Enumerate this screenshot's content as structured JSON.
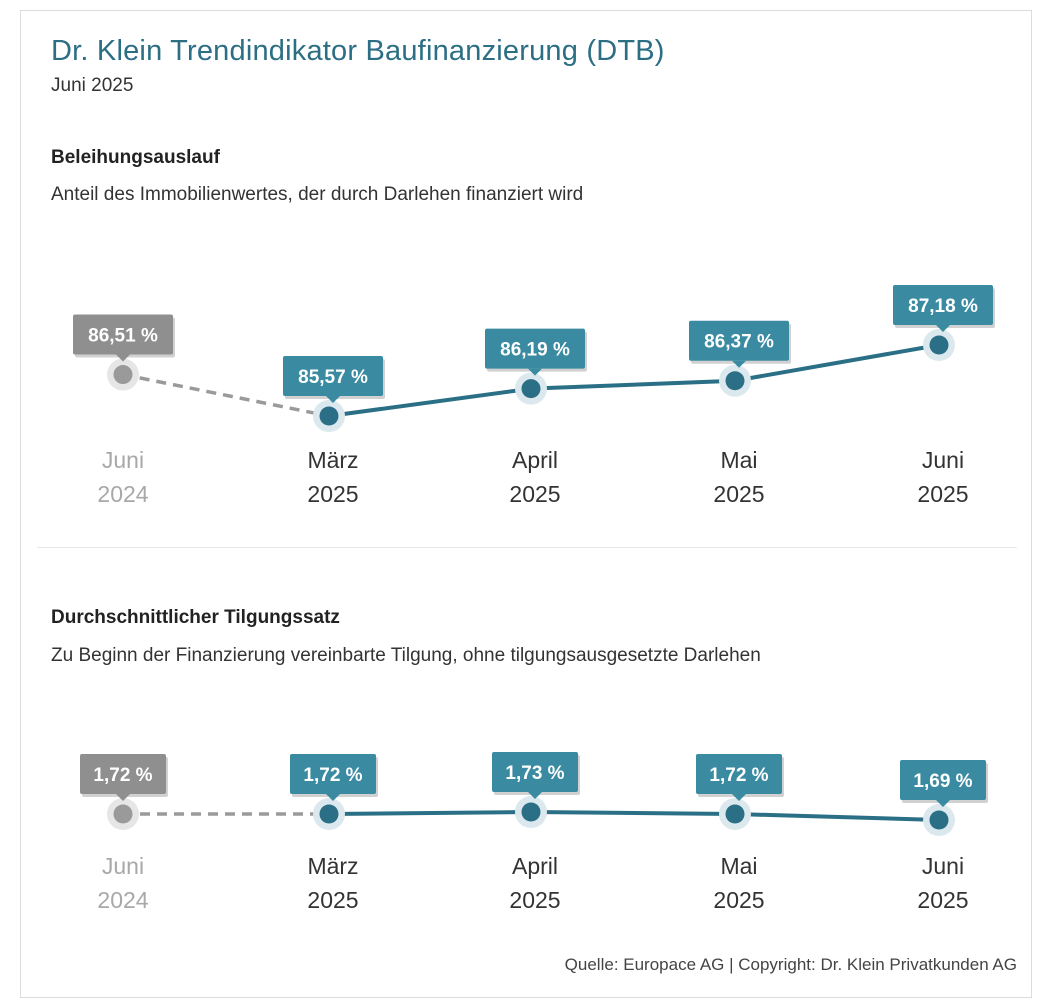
{
  "header": {
    "title": "Dr. Klein Trendindikator Baufinanzierung (DTB)",
    "subtitle": "Juni 2025"
  },
  "colors": {
    "accent": "#2b6f86",
    "label_box": "#3a8ba2",
    "past": "#9a9a9a",
    "past_label_box": "#8f8f8f",
    "halo": "#dbe8ed",
    "past_halo": "#e6e6e6",
    "axis_text_past": "#a8a8a8",
    "axis_text": "#333333"
  },
  "chart_data": [
    {
      "type": "line",
      "title": "Beleihungsauslauf",
      "subtitle": "Anteil des Immobilienwertes, der durch Darlehen finanziert wird",
      "categories": [
        [
          "Juni",
          "2024"
        ],
        [
          "März",
          "2025"
        ],
        [
          "April",
          "2025"
        ],
        [
          "Mai",
          "2025"
        ],
        [
          "Juni",
          "2025"
        ]
      ],
      "values": [
        86.51,
        85.57,
        86.19,
        86.37,
        87.18
      ],
      "labels": [
        "86,51 %",
        "85,57 %",
        "86,19 %",
        "86,37 %",
        "87,18 %"
      ],
      "past_index": 0
    },
    {
      "type": "line",
      "title": "Durchschnittlicher Tilgungssatz",
      "subtitle": "Zu Beginn der Finanzierung vereinbarte Tilgung, ohne tilgungsausgesetzte Darlehen",
      "categories": [
        [
          "Juni",
          "2024"
        ],
        [
          "März",
          "2025"
        ],
        [
          "April",
          "2025"
        ],
        [
          "Mai",
          "2025"
        ],
        [
          "Juni",
          "2025"
        ]
      ],
      "values": [
        1.72,
        1.72,
        1.73,
        1.72,
        1.69
      ],
      "labels": [
        "1,72 %",
        "1,72 %",
        "1,73 %",
        "1,72 %",
        "1,69 %"
      ],
      "past_index": 0
    }
  ],
  "footer": {
    "source": "Quelle: Europace AG | Copyright: Dr. Klein Privatkunden AG"
  }
}
